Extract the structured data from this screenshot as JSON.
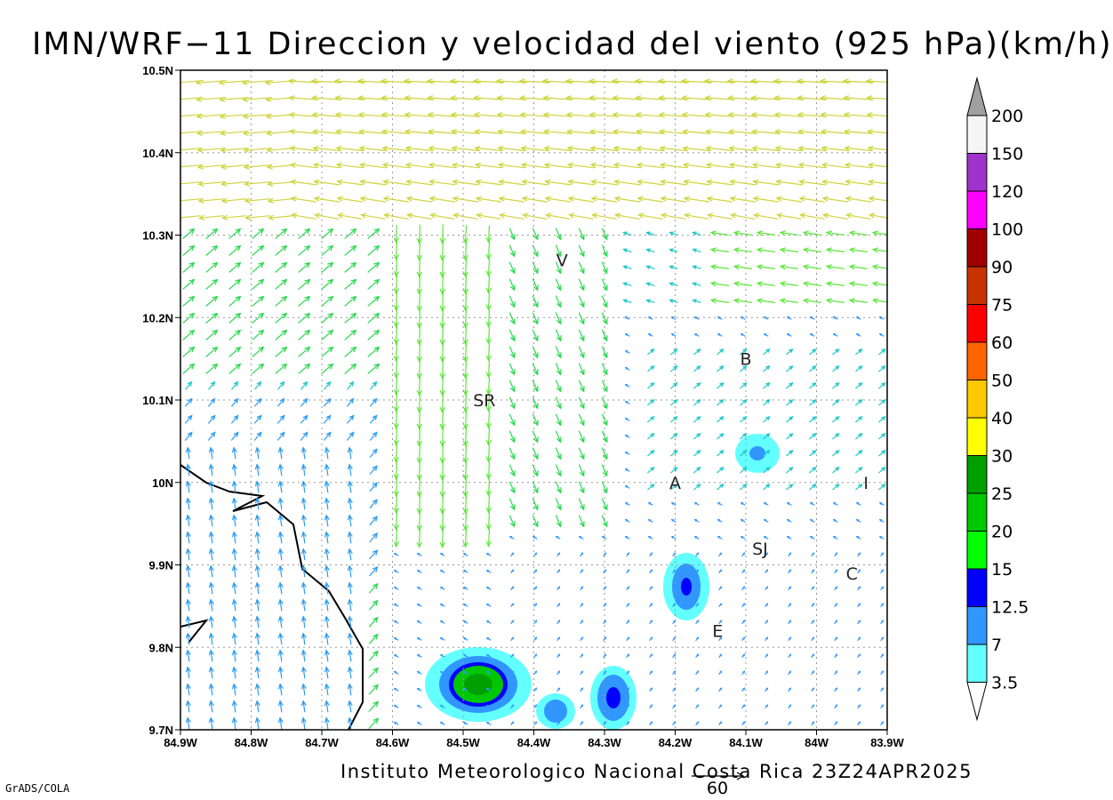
{
  "title": "IMN/WRF−11 Direccion y velocidad del viento (925 hPa)(km/h)",
  "footer": "Instituto Meteorologico Nacional Costa Rica 23Z24APR2025",
  "credit": "GrADS/COLA",
  "reference_vector": {
    "label": "60",
    "speed_kmh": 60
  },
  "map": {
    "lon_range": [
      -84.9,
      -83.9
    ],
    "lat_range": [
      9.7,
      10.5
    ],
    "x_ticks": [
      "84.9W",
      "84.8W",
      "84.7W",
      "84.6W",
      "84.5W",
      "84.4W",
      "84.3W",
      "84.2W",
      "84.1W",
      "84W",
      "83.9W"
    ],
    "y_ticks": [
      "9.7N",
      "9.8N",
      "9.9N",
      "10N",
      "10.1N",
      "10.2N",
      "10.3N",
      "10.4N",
      "10.5N"
    ],
    "grid": "dotted",
    "cities": [
      {
        "label": "V",
        "lon": -84.36,
        "lat": 10.27
      },
      {
        "label": "B",
        "lon": -84.1,
        "lat": 10.15
      },
      {
        "label": "SR",
        "lon": -84.47,
        "lat": 10.1
      },
      {
        "label": "A",
        "lon": -84.2,
        "lat": 10.0
      },
      {
        "label": "I",
        "lon": -83.93,
        "lat": 10.0
      },
      {
        "label": "SJ",
        "lon": -84.08,
        "lat": 9.92
      },
      {
        "label": "C",
        "lon": -83.95,
        "lat": 9.89
      },
      {
        "label": "E",
        "lon": -84.14,
        "lat": 9.82
      }
    ]
  },
  "colorbar": {
    "labels": [
      "200",
      "150",
      "120",
      "100",
      "90",
      "75",
      "60",
      "50",
      "40",
      "30",
      "25",
      "20",
      "15",
      "12.5",
      "7",
      "3.5"
    ],
    "colors": [
      "#a0a0a0",
      "#f5f5f5",
      "#a033cc",
      "#ff00ff",
      "#a00000",
      "#c83200",
      "#ff0000",
      "#ff6400",
      "#ffc800",
      "#ffff00",
      "#00a000",
      "#00c800",
      "#00ff00",
      "#0000ff",
      "#3296ff",
      "#64ffff",
      "#ffffff"
    ]
  }
}
